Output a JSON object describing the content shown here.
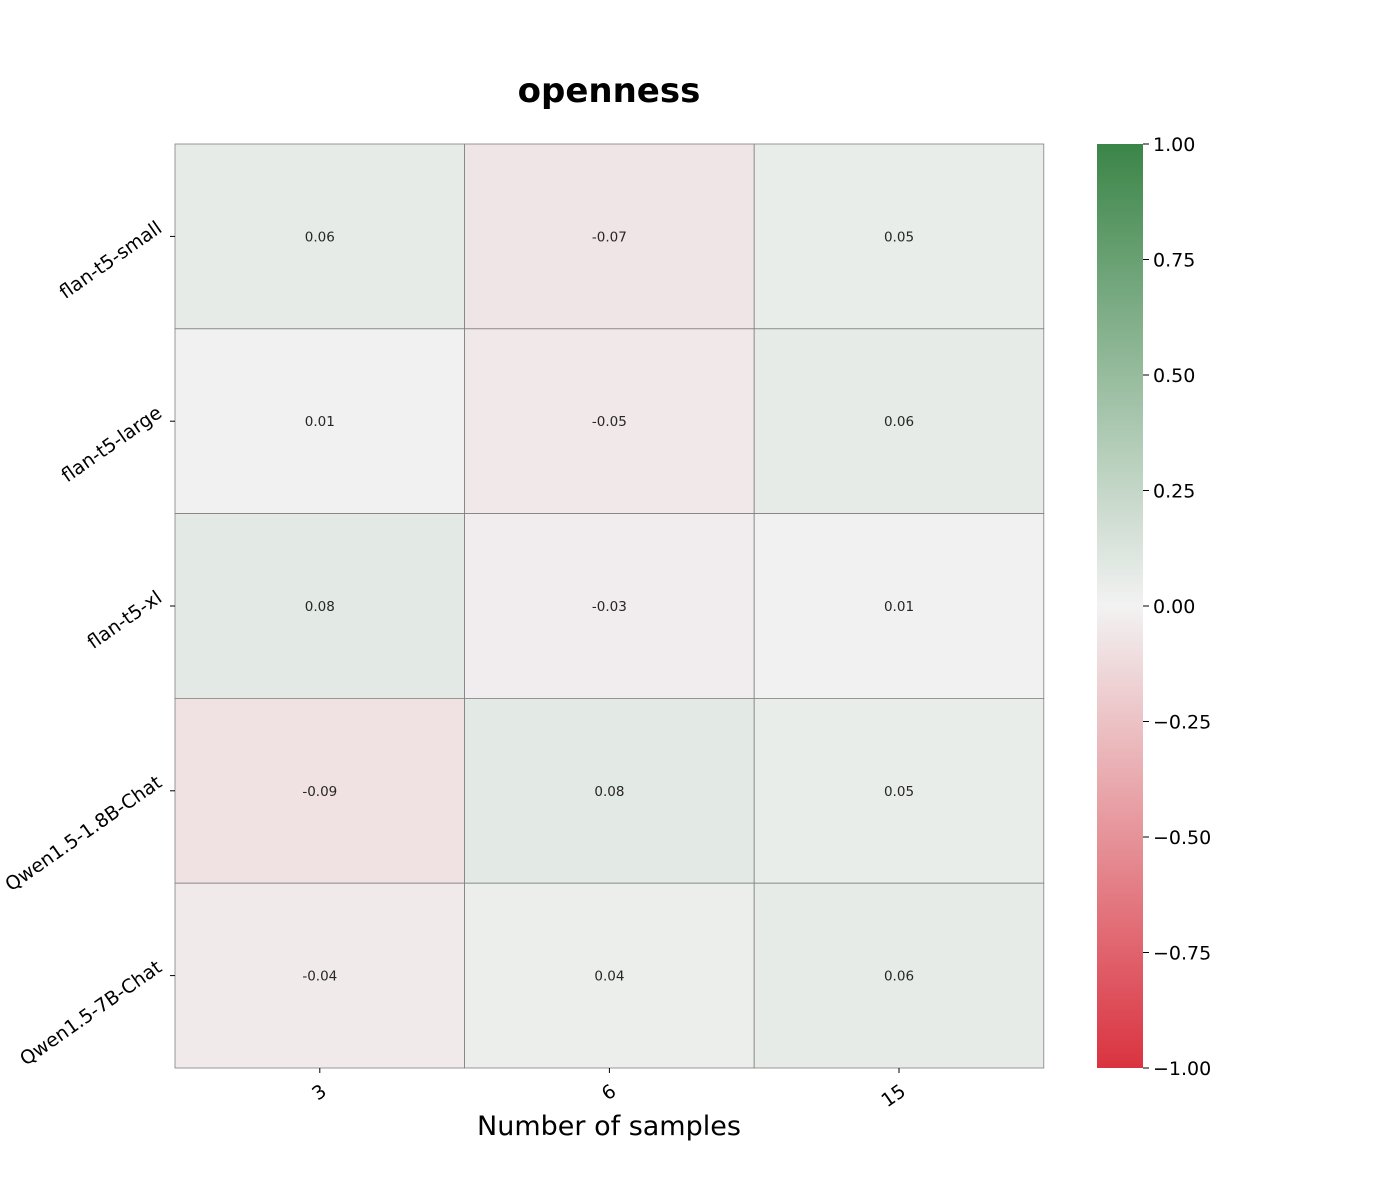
{
  "chart_data": {
    "type": "heatmap",
    "title": "openness",
    "xlabel": "Number of samples",
    "ylabel": "",
    "x_categories": [
      "3",
      "6",
      "15"
    ],
    "y_categories": [
      "flan-t5-small",
      "flan-t5-large",
      "flan-t5-xl",
      "Qwen1.5-1.8B-Chat",
      "Qwen1.5-7B-Chat"
    ],
    "values": [
      [
        0.06,
        -0.07,
        0.05
      ],
      [
        0.01,
        -0.05,
        0.06
      ],
      [
        0.08,
        -0.03,
        0.01
      ],
      [
        -0.09,
        0.08,
        0.05
      ],
      [
        -0.04,
        0.04,
        0.06
      ]
    ],
    "value_labels": [
      [
        "0.06",
        "-0.07",
        "0.05"
      ],
      [
        "0.01",
        "-0.05",
        "0.06"
      ],
      [
        "0.08",
        "-0.03",
        "0.01"
      ],
      [
        "-0.09",
        "0.08",
        "0.05"
      ],
      [
        "-0.04",
        "0.04",
        "0.06"
      ]
    ],
    "vmin": -1.0,
    "vmax": 1.0,
    "colormap": {
      "low": "#da3340",
      "mid": "#f2f2f2",
      "high": "#3b8548"
    },
    "colorbar_ticks": [
      1.0,
      0.75,
      0.5,
      0.25,
      0.0,
      -0.25,
      -0.5,
      -0.75,
      -1.0
    ],
    "colorbar_tick_labels": [
      "1.00",
      "0.75",
      "0.50",
      "0.25",
      "0.00",
      "−0.25",
      "−0.50",
      "−0.75",
      "−1.00"
    ],
    "cell_border_color": "#808080",
    "legend": "colorbar-right"
  }
}
